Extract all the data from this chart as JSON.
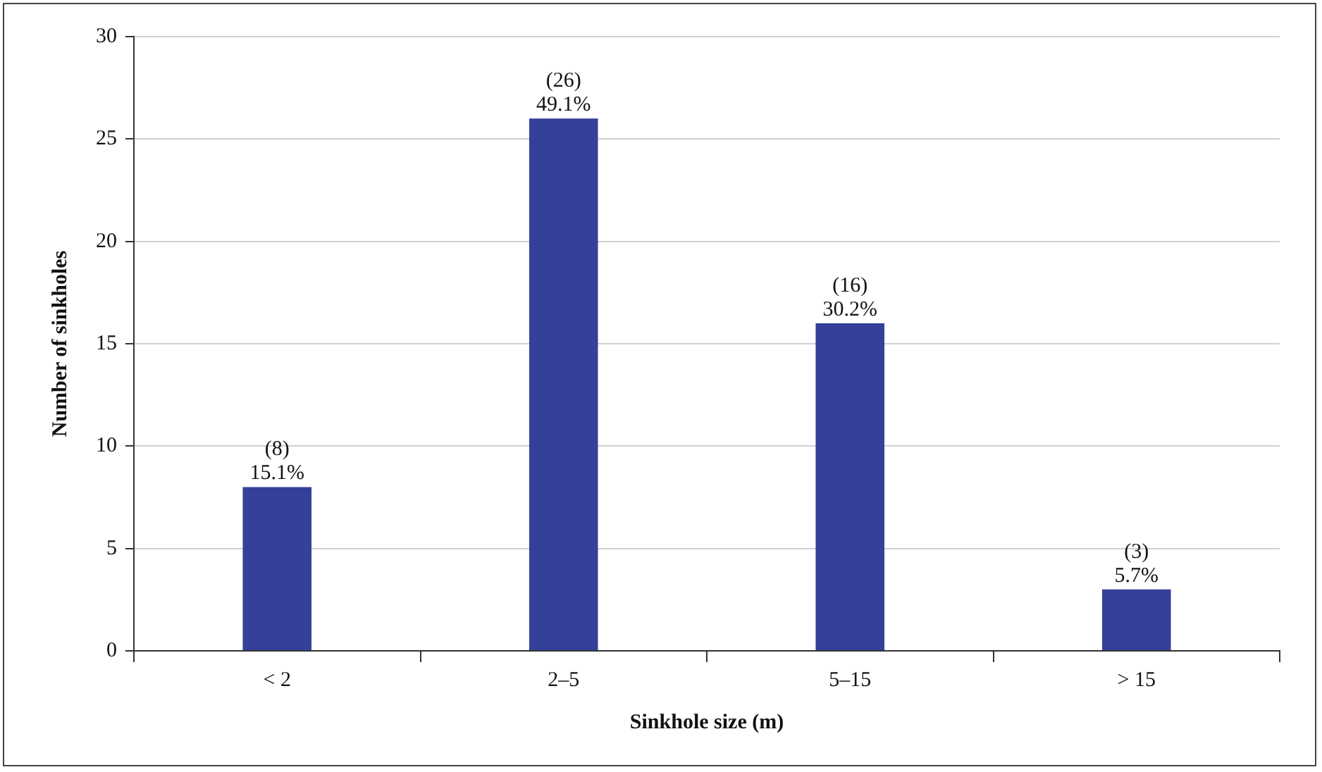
{
  "chart_data": {
    "type": "bar",
    "xlabel": "Sinkhole size (m)",
    "ylabel": "Number of sinkholes",
    "categories": [
      "< 2",
      "2–5",
      "5–15",
      "> 15"
    ],
    "values": [
      8,
      26,
      16,
      3
    ],
    "value_labels": [
      "(8)\n15.1%",
      "(26)\n49.1%",
      "(16)\n30.2%",
      "(3)\n5.7%"
    ],
    "color": "#34409a",
    "ylim": [
      0,
      30
    ],
    "yticks": [
      0,
      5,
      10,
      15,
      20,
      25,
      30
    ],
    "grid": "y",
    "legend": false
  }
}
